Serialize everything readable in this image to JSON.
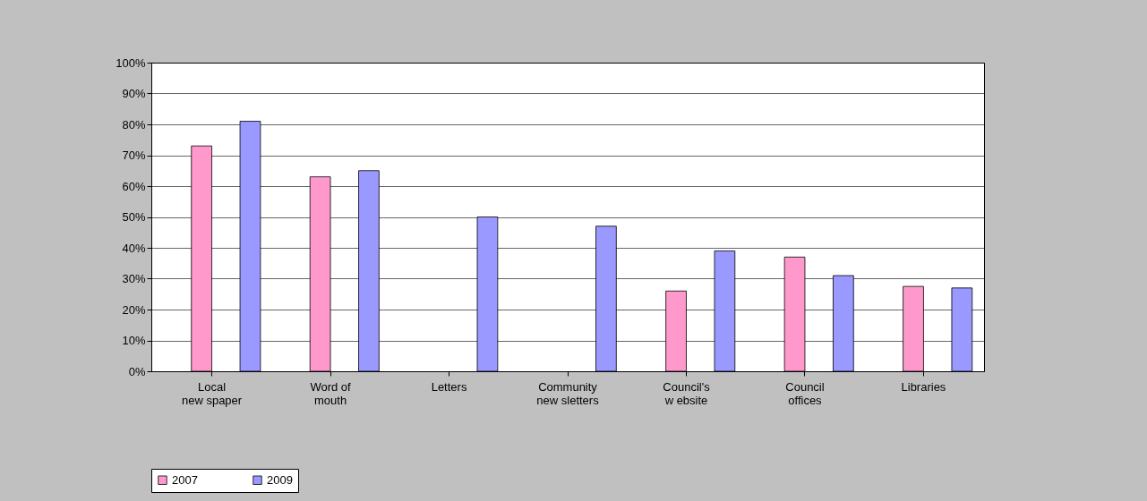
{
  "chart_data": {
    "type": "bar",
    "categories": [
      "Local\nnew spaper",
      "Word of\nmouth",
      "Letters",
      "Community\nnew sletters",
      "Council's\nw ebsite",
      "Council\noffices",
      "Libraries"
    ],
    "series": [
      {
        "name": "2007",
        "color": "#ff99cc",
        "values": [
          73,
          63,
          null,
          null,
          26,
          37,
          27.5
        ]
      },
      {
        "name": "2009",
        "color": "#9999ff",
        "values": [
          81,
          65,
          50,
          47,
          39,
          31,
          27
        ]
      }
    ],
    "ylim": [
      0,
      100
    ],
    "yticks": [
      {
        "value": 0,
        "label": "0%"
      },
      {
        "value": 10,
        "label": "10%"
      },
      {
        "value": 20,
        "label": "20%"
      },
      {
        "value": 30,
        "label": "30%"
      },
      {
        "value": 40,
        "label": "40%"
      },
      {
        "value": 50,
        "label": "50%"
      },
      {
        "value": 60,
        "label": "60%"
      },
      {
        "value": 70,
        "label": "70%"
      },
      {
        "value": 80,
        "label": "80%"
      },
      {
        "value": 90,
        "label": "90%"
      },
      {
        "value": 100,
        "label": "100%"
      }
    ],
    "grid": "y",
    "legend": "bottom"
  }
}
